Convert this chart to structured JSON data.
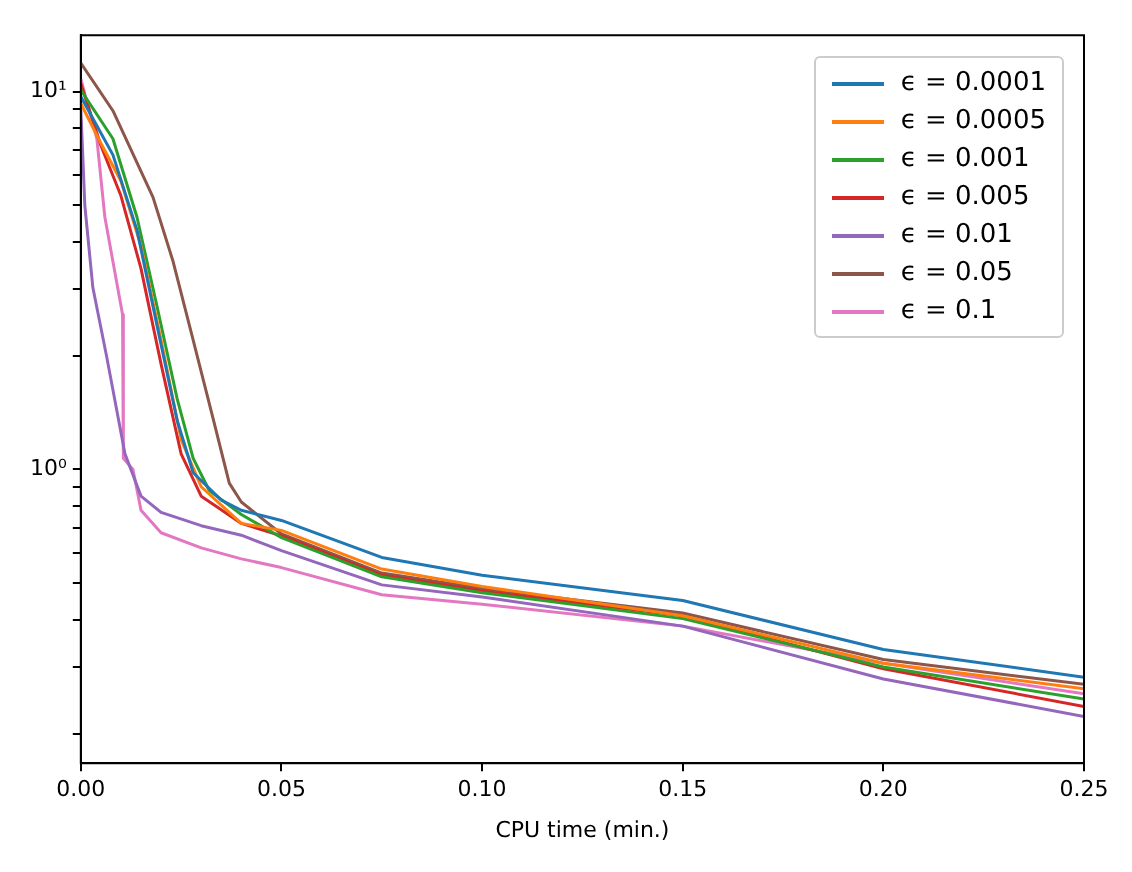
{
  "chart_data": {
    "type": "line",
    "xlabel": "CPU time (min.)",
    "xlim": [
      0,
      0.25
    ],
    "ylim": [
      0.167,
      14.1
    ],
    "log": "y",
    "grid": false,
    "legend": "top right",
    "marker": "none",
    "line_style": "solid",
    "xticks": [
      {
        "value": 0,
        "label": "0.00"
      },
      {
        "value": 0.05,
        "label": "0.05"
      },
      {
        "value": 0.1,
        "label": "0.10"
      },
      {
        "value": 0.15,
        "label": "0.15"
      },
      {
        "value": 0.2,
        "label": "0.20"
      },
      {
        "value": 0.25,
        "label": "0.25"
      }
    ],
    "yticks": [
      {
        "value": 0.2,
        "label": null
      },
      {
        "value": 0.3,
        "label": null
      },
      {
        "value": 0.4,
        "label": null
      },
      {
        "value": 0.5,
        "label": null
      },
      {
        "value": 0.6,
        "label": null
      },
      {
        "value": 0.7,
        "label": null
      },
      {
        "value": 0.8,
        "label": null
      },
      {
        "value": 0.9,
        "label": null
      },
      {
        "value": 1,
        "label": "10⁰"
      },
      {
        "value": 2,
        "label": null
      },
      {
        "value": 3,
        "label": null
      },
      {
        "value": 4,
        "label": null
      },
      {
        "value": 5,
        "label": null
      },
      {
        "value": 6,
        "label": null
      },
      {
        "value": 7,
        "label": null
      },
      {
        "value": 8,
        "label": null
      },
      {
        "value": 9,
        "label": null
      },
      {
        "value": 10,
        "label": "10¹"
      }
    ],
    "series": [
      {
        "name": "ϵ = 0.0001",
        "color": "#1f77b4",
        "x": [
          0,
          0.008,
          0.014,
          0.019,
          0.024,
          0.028,
          0.035,
          0.04,
          0.05,
          0.075,
          0.1,
          0.15,
          0.2,
          0.25
        ],
        "values": [
          9.7,
          6.8,
          4.3,
          2.4,
          1.35,
          0.98,
          0.83,
          0.78,
          0.733,
          0.585,
          0.525,
          0.45,
          0.334,
          0.282
        ]
      },
      {
        "name": "ϵ = 0.0005",
        "color": "#ff7f0e",
        "x": [
          0,
          0.005,
          0.01,
          0.015,
          0.02,
          0.025,
          0.03,
          0.04,
          0.05,
          0.075,
          0.1,
          0.15,
          0.2,
          0.25
        ],
        "values": [
          9.3,
          7.3,
          5.8,
          3.9,
          2.2,
          1.2,
          0.9,
          0.72,
          0.69,
          0.545,
          0.49,
          0.41,
          0.307,
          0.263
        ]
      },
      {
        "name": "ϵ = 0.001",
        "color": "#2ca02c",
        "x": [
          0,
          0.008,
          0.014,
          0.019,
          0.024,
          0.028,
          0.032,
          0.04,
          0.05,
          0.075,
          0.1,
          0.15,
          0.2,
          0.25
        ],
        "values": [
          10.1,
          7.5,
          4.65,
          2.7,
          1.54,
          1.07,
          0.88,
          0.76,
          0.66,
          0.52,
          0.472,
          0.403,
          0.3,
          0.247
        ]
      },
      {
        "name": "ϵ = 0.005",
        "color": "#d62728",
        "x": [
          0,
          0.005,
          0.01,
          0.015,
          0.02,
          0.025,
          0.03,
          0.04,
          0.05,
          0.075,
          0.1,
          0.15,
          0.2,
          0.25
        ],
        "values": [
          10.5,
          7.2,
          5.3,
          3.4,
          1.9,
          1.1,
          0.85,
          0.72,
          0.667,
          0.525,
          0.477,
          0.41,
          0.297,
          0.236
        ]
      },
      {
        "name": "ϵ = 0.01",
        "color": "#9467bd",
        "x": [
          0,
          0.001,
          0.003,
          0.0064,
          0.011,
          0.015,
          0.02,
          0.03,
          0.04,
          0.05,
          0.075,
          0.1,
          0.15,
          0.2,
          0.25
        ],
        "values": [
          9,
          5,
          3.03,
          2,
          1.1,
          0.85,
          0.77,
          0.71,
          0.67,
          0.61,
          0.495,
          0.46,
          0.385,
          0.279,
          0.222
        ]
      },
      {
        "name": "ϵ = 0.05",
        "color": "#8c564b",
        "x": [
          0,
          0.008,
          0.018,
          0.023,
          0.028,
          0.033,
          0.037,
          0.04,
          0.05,
          0.075,
          0.1,
          0.15,
          0.2,
          0.25
        ],
        "values": [
          11.9,
          8.9,
          5.25,
          3.55,
          2.2,
          1.36,
          0.92,
          0.82,
          0.675,
          0.532,
          0.484,
          0.417,
          0.314,
          0.27
        ]
      },
      {
        "name": "ϵ = 0.1",
        "color": "#e377c2",
        "x": [
          0,
          0.004,
          0.006,
          0.0104,
          0.0106,
          0.013,
          0.015,
          0.02,
          0.03,
          0.04,
          0.05,
          0.075,
          0.1,
          0.15,
          0.2,
          0.25
        ],
        "values": [
          10.8,
          7.5,
          4.65,
          2.57,
          1.07,
          1,
          0.78,
          0.68,
          0.62,
          0.58,
          0.55,
          0.466,
          0.44,
          0.385,
          0.307,
          0.255
        ]
      }
    ]
  }
}
